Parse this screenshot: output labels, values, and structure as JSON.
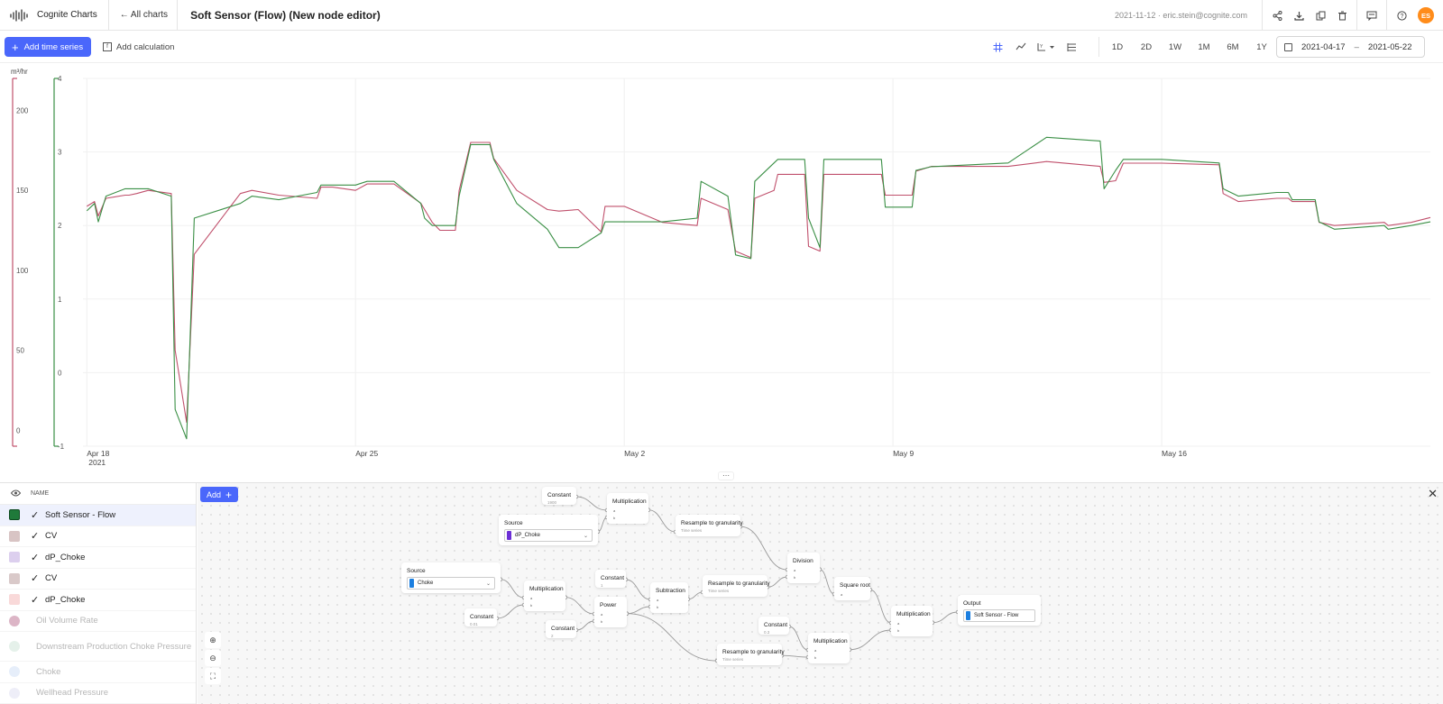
{
  "header": {
    "app_name": "Cognite Charts",
    "back_label": "← All charts",
    "chart_title": "Soft Sensor (Flow) (New node editor)",
    "date_user": "2021-11-12 · eric.stein@cognite.com",
    "avatar_initials": "ES",
    "icons": [
      "share-icon",
      "download-icon",
      "duplicate-icon",
      "delete-icon",
      "comment-icon",
      "help-icon"
    ]
  },
  "toolbar": {
    "add_time_series": "Add time series",
    "add_calculation": "Add calculation",
    "ranges": [
      "1D",
      "2D",
      "1W",
      "1M",
      "6M",
      "1Y"
    ],
    "date_from": "2021-04-17",
    "date_to": "2021-05-22",
    "tool_icons": [
      "grid-icon",
      "line-icon",
      "y-axis-icon",
      "stacked-icon"
    ],
    "accent_color": "#4a67fb"
  },
  "chart_data": {
    "type": "line",
    "unit_label": "m³/hr",
    "x_ticks": [
      {
        "label": "Apr 18",
        "sub": "2021",
        "day": 0
      },
      {
        "label": "Apr 25",
        "sub": "",
        "day": 7
      },
      {
        "label": "May 2",
        "sub": "",
        "day": 14
      },
      {
        "label": "May 9",
        "sub": "",
        "day": 21
      },
      {
        "label": "May 16",
        "sub": "",
        "day": 28
      }
    ],
    "xlim": [
      -0.1,
      35.0
    ],
    "y_axes": [
      {
        "color": "#c0506c",
        "ylim": [
          -10,
          220
        ],
        "ticks": [
          0,
          50,
          100,
          150,
          200
        ]
      },
      {
        "color": "#3a8f45",
        "ylim": [
          -1,
          4
        ],
        "ticks": [
          -1,
          0,
          1,
          2,
          3,
          4
        ]
      }
    ],
    "grid": true,
    "series": [
      {
        "color": "#c0506c",
        "axis": 0,
        "x": [
          0.0,
          0.2,
          0.3,
          0.5,
          1.0,
          1.1,
          1.3,
          1.6,
          2.2,
          2.3,
          2.6,
          2.8,
          4.0,
          4.3,
          5.0,
          6.0,
          6.1,
          6.4,
          7.0,
          7.3,
          8.0,
          8.7,
          8.8,
          9.0,
          9.2,
          9.6,
          9.7,
          10.0,
          10.5,
          10.6,
          11.2,
          12.0,
          12.3,
          12.8,
          13.4,
          13.5,
          14.0,
          15.0,
          15.9,
          16.0,
          16.7,
          16.9,
          17.3,
          17.4,
          17.9,
          18.0,
          18.7,
          18.8,
          19.1,
          19.2,
          20.0,
          20.7,
          20.8,
          21.5,
          21.6,
          22.0,
          24.0,
          25.0,
          26.4,
          26.5,
          26.8,
          27.0,
          28.0,
          29.5,
          29.6,
          30.0,
          31.0,
          31.3,
          31.4,
          32.0,
          32.1,
          32.5,
          33.8,
          33.9,
          34.5,
          35.0
        ],
        "y": [
          140,
          143,
          134,
          145,
          147,
          147,
          148,
          150,
          148,
          50,
          5,
          110,
          148,
          150,
          147,
          145,
          152,
          152,
          150,
          154,
          154,
          142,
          138,
          130,
          125,
          125,
          150,
          180,
          180,
          170,
          150,
          138,
          137,
          138,
          124,
          140,
          140,
          130,
          128,
          145,
          138,
          112,
          108,
          145,
          150,
          160,
          160,
          115,
          112,
          160,
          160,
          160,
          147,
          147,
          162,
          165,
          165,
          168,
          165,
          155,
          156,
          167,
          167,
          166,
          148,
          143,
          145,
          145,
          143,
          143,
          130,
          128,
          130,
          128,
          130,
          133
        ]
      },
      {
        "color": "#3a8f45",
        "axis": 1,
        "x": [
          0.0,
          0.2,
          0.3,
          0.5,
          1.0,
          1.1,
          1.3,
          1.6,
          2.2,
          2.3,
          2.6,
          2.8,
          4.0,
          4.3,
          5.0,
          6.0,
          6.1,
          6.4,
          7.0,
          7.3,
          8.0,
          8.7,
          8.8,
          9.0,
          9.2,
          9.6,
          9.7,
          10.0,
          10.5,
          10.6,
          11.2,
          12.0,
          12.3,
          12.8,
          13.4,
          13.5,
          14.0,
          15.0,
          15.9,
          16.0,
          16.7,
          16.9,
          17.3,
          17.4,
          17.9,
          18.0,
          18.7,
          18.8,
          19.1,
          19.2,
          20.0,
          20.7,
          20.8,
          21.5,
          21.6,
          22.0,
          24.0,
          25.0,
          26.4,
          26.5,
          26.8,
          27.0,
          28.0,
          29.5,
          29.6,
          30.0,
          31.0,
          31.3,
          31.4,
          32.0,
          32.1,
          32.5,
          33.8,
          33.9,
          34.5,
          35.0
        ],
        "y": [
          2.2,
          2.3,
          2.05,
          2.4,
          2.5,
          2.5,
          2.5,
          2.5,
          2.4,
          -0.5,
          -0.9,
          2.1,
          2.3,
          2.4,
          2.35,
          2.45,
          2.55,
          2.55,
          2.55,
          2.6,
          2.6,
          2.3,
          2.1,
          2.0,
          2.0,
          2.0,
          2.4,
          3.1,
          3.1,
          2.9,
          2.3,
          1.95,
          1.7,
          1.7,
          1.9,
          2.05,
          2.05,
          2.05,
          2.1,
          2.6,
          2.4,
          1.6,
          1.55,
          2.6,
          2.85,
          2.9,
          2.9,
          2.1,
          1.7,
          2.9,
          2.9,
          2.9,
          2.25,
          2.25,
          2.75,
          2.8,
          2.85,
          3.2,
          3.15,
          2.5,
          2.75,
          2.9,
          2.9,
          2.85,
          2.5,
          2.4,
          2.45,
          2.45,
          2.35,
          2.35,
          2.05,
          1.95,
          2.0,
          1.95,
          2.0,
          2.05
        ]
      }
    ]
  },
  "sidebar": {
    "column_header": "NAME",
    "items": [
      {
        "label": "Soft Sensor - Flow",
        "color": "#1f7a3a",
        "checked": true,
        "selected": true,
        "faded": false,
        "round": false
      },
      {
        "label": "CV",
        "color": "#d8c4c4",
        "checked": true,
        "selected": false,
        "faded": false,
        "round": false
      },
      {
        "label": "dP_Choke",
        "color": "#dccfee",
        "checked": true,
        "selected": false,
        "faded": false,
        "round": false
      },
      {
        "label": "CV",
        "color": "#d9c9c9",
        "checked": true,
        "selected": false,
        "faded": false,
        "round": false
      },
      {
        "label": "dP_Choke",
        "color": "#f9d9d9",
        "checked": true,
        "selected": false,
        "faded": false,
        "round": false
      },
      {
        "label": "Oil Volume Rate",
        "color": "#dcb5c6",
        "checked": false,
        "selected": false,
        "faded": true,
        "round": true
      },
      {
        "label": "Downstream Production Choke Pressure",
        "color": "#e5f1ea",
        "checked": false,
        "selected": false,
        "faded": true,
        "round": true
      },
      {
        "label": "Choke",
        "color": "#e6eefa",
        "checked": false,
        "selected": false,
        "faded": true,
        "round": true
      },
      {
        "label": "Wellhead Pressure",
        "color": "#eeeef8",
        "checked": false,
        "selected": false,
        "faded": true,
        "round": true
      }
    ]
  },
  "node_editor": {
    "add_label": "Add",
    "nodes": [
      {
        "id": "c1",
        "title": "Constant",
        "sub": "1900"
      },
      {
        "id": "m1",
        "title": "Multiplication",
        "pins": [
          "a",
          "b"
        ]
      },
      {
        "id": "s1",
        "title": "Source",
        "select": "dP_Choke",
        "select_color": "#6c2fd6"
      },
      {
        "id": "r1",
        "title": "Resample to granularity",
        "sub": "Time series"
      },
      {
        "id": "d1",
        "title": "Division",
        "pins": [
          "a",
          "b"
        ]
      },
      {
        "id": "s2",
        "title": "Source",
        "select": "Choke",
        "select_color": "#1c7fe0"
      },
      {
        "id": "m2",
        "title": "Multiplication",
        "pins": [
          "a",
          "b"
        ]
      },
      {
        "id": "c2",
        "title": "Constant",
        "sub": "1"
      },
      {
        "id": "sub1",
        "title": "Subtraction",
        "pins": [
          "a",
          "b"
        ]
      },
      {
        "id": "r2",
        "title": "Resample to granularity",
        "sub": "Time series"
      },
      {
        "id": "sq1",
        "title": "Square root",
        "pins": [
          "a"
        ]
      },
      {
        "id": "c3",
        "title": "Constant",
        "sub": "0.01"
      },
      {
        "id": "pw1",
        "title": "Power",
        "pins": [
          "a",
          "b"
        ]
      },
      {
        "id": "c4",
        "title": "Constant",
        "sub": "2"
      },
      {
        "id": "c5",
        "title": "Constant",
        "sub": "0.3"
      },
      {
        "id": "r3",
        "title": "Resample to granularity",
        "sub": "Time series"
      },
      {
        "id": "m3",
        "title": "Multiplication",
        "pins": [
          "a",
          "b"
        ]
      },
      {
        "id": "m4",
        "title": "Multiplication",
        "pins": [
          "a",
          "b"
        ]
      },
      {
        "id": "out",
        "title": "Output",
        "select": "Soft Sensor - Flow",
        "select_color": "#1c7fe0"
      }
    ],
    "zoom_controls": [
      "zoom-in-icon",
      "zoom-out-icon",
      "fit-view-icon"
    ]
  }
}
